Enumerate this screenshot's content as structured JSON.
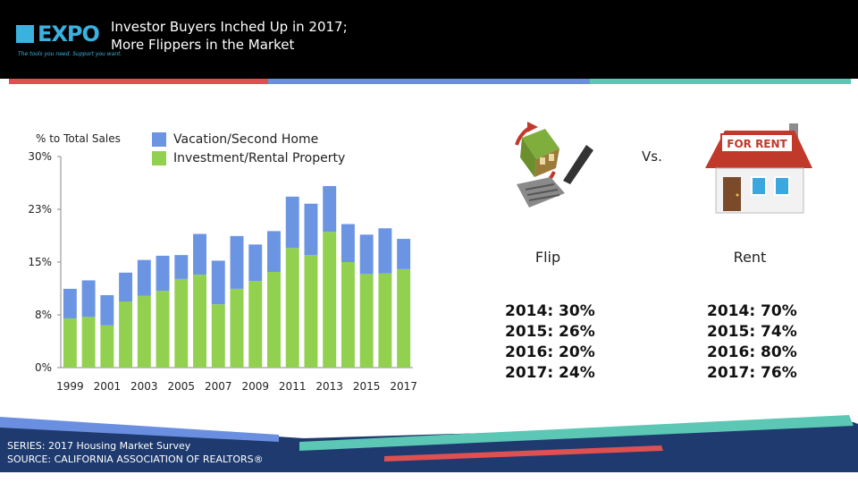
{
  "header": {
    "logo_text": "EXPO",
    "logo_tagline": "The tools you need. Support you want.",
    "title_line1": "Investor Buyers Inched Up in 2017;",
    "title_line2": "More Flippers in the Market"
  },
  "chart_data": {
    "type": "bar",
    "stacked": true,
    "title": "",
    "ylabel": "% to Total Sales",
    "ylim": [
      0,
      30
    ],
    "y_ticks": [
      "0%",
      "8%",
      "15%",
      "23%",
      "30%"
    ],
    "x_tick_labels": [
      "1999",
      "2001",
      "2003",
      "2005",
      "2007",
      "2009",
      "2011",
      "2013",
      "2015",
      "2017"
    ],
    "categories": [
      "1999",
      "2000",
      "2001",
      "2002",
      "2003",
      "2004",
      "2005",
      "2006",
      "2007",
      "2008",
      "2009",
      "2010",
      "2011",
      "2012",
      "2013",
      "2014",
      "2015",
      "2016",
      "2017"
    ],
    "series": [
      {
        "name": "Investment/Rental Property",
        "color": "#92d050",
        "values": [
          7.0,
          7.2,
          6.0,
          9.4,
          10.2,
          10.9,
          12.6,
          13.2,
          9.0,
          11.2,
          12.3,
          13.6,
          17.0,
          16.0,
          19.3,
          15.0,
          13.3,
          13.4,
          14.0
        ]
      },
      {
        "name": "Vacation/Second Home",
        "color": "#6b95e3",
        "values": [
          4.2,
          5.2,
          4.3,
          4.1,
          5.1,
          5.0,
          3.4,
          5.8,
          6.2,
          7.5,
          5.2,
          5.8,
          7.3,
          7.3,
          6.5,
          5.4,
          5.6,
          6.4,
          4.3
        ]
      }
    ],
    "legend_position": "top",
    "grid": false
  },
  "right_panel": {
    "vs_label": "Vs.",
    "flip": {
      "label": "Flip",
      "stats": [
        "2014: 30%",
        "2015: 26%",
        "2016: 20%",
        "2017: 24%"
      ]
    },
    "rent": {
      "label": "Rent",
      "sign_text": "FOR RENT",
      "stats": [
        "2014: 70%",
        "2015: 74%",
        "2016: 80%",
        "2017: 76%"
      ]
    }
  },
  "footer": {
    "series_line": "SERIES: 2017 Housing Market Survey",
    "source_line": "SOURCE:  CALIFORNIA ASSOCIATION OF REALTORS®"
  },
  "colors": {
    "stripe_red": "#e05050",
    "stripe_blue": "#6b8fe0",
    "stripe_teal": "#5cc7b5",
    "footer_navy": "#1e3a6e"
  }
}
